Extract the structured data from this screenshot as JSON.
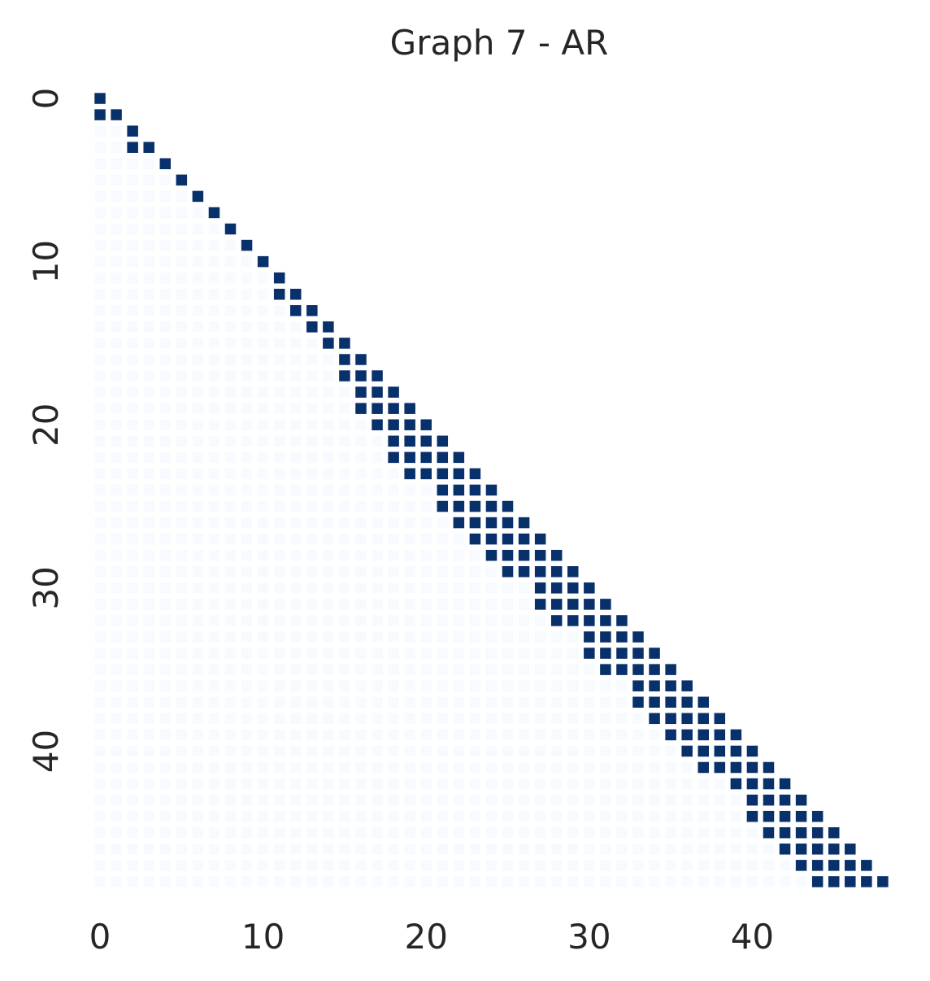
{
  "chart_data": {
    "type": "heatmap",
    "title": "Graph 7 - AR",
    "xlabel": "",
    "ylabel": "",
    "n": 49,
    "x_ticks": [
      0,
      10,
      20,
      30,
      40
    ],
    "y_ticks": [
      0,
      10,
      20,
      30,
      40
    ],
    "mask": "upper-triangle",
    "value_range": [
      0,
      1
    ],
    "colors": {
      "one": "#08306b",
      "zero": "#f7fbff"
    },
    "ones": [
      [
        0,
        0
      ],
      [
        1,
        0
      ],
      [
        1,
        1
      ],
      [
        2,
        2
      ],
      [
        3,
        2
      ],
      [
        3,
        3
      ],
      [
        4,
        4
      ],
      [
        5,
        5
      ],
      [
        6,
        6
      ],
      [
        7,
        7
      ],
      [
        8,
        8
      ],
      [
        9,
        9
      ],
      [
        10,
        10
      ],
      [
        11,
        11
      ],
      [
        12,
        11
      ],
      [
        12,
        12
      ],
      [
        13,
        12
      ],
      [
        13,
        13
      ],
      [
        14,
        13
      ],
      [
        14,
        14
      ],
      [
        15,
        14
      ],
      [
        15,
        15
      ],
      [
        16,
        15
      ],
      [
        16,
        16
      ],
      [
        17,
        15
      ],
      [
        17,
        16
      ],
      [
        17,
        17
      ],
      [
        18,
        16
      ],
      [
        18,
        17
      ],
      [
        18,
        18
      ],
      [
        19,
        16
      ],
      [
        19,
        17
      ],
      [
        19,
        18
      ],
      [
        19,
        19
      ],
      [
        20,
        17
      ],
      [
        20,
        18
      ],
      [
        20,
        19
      ],
      [
        20,
        20
      ],
      [
        21,
        18
      ],
      [
        21,
        19
      ],
      [
        21,
        20
      ],
      [
        21,
        21
      ],
      [
        22,
        18
      ],
      [
        22,
        19
      ],
      [
        22,
        20
      ],
      [
        22,
        21
      ],
      [
        22,
        22
      ],
      [
        23,
        19
      ],
      [
        23,
        20
      ],
      [
        23,
        21
      ],
      [
        23,
        22
      ],
      [
        23,
        23
      ],
      [
        24,
        21
      ],
      [
        24,
        22
      ],
      [
        24,
        23
      ],
      [
        24,
        24
      ],
      [
        25,
        21
      ],
      [
        25,
        22
      ],
      [
        25,
        23
      ],
      [
        25,
        24
      ],
      [
        25,
        25
      ],
      [
        26,
        22
      ],
      [
        26,
        23
      ],
      [
        26,
        24
      ],
      [
        26,
        25
      ],
      [
        26,
        26
      ],
      [
        27,
        23
      ],
      [
        27,
        24
      ],
      [
        27,
        25
      ],
      [
        27,
        26
      ],
      [
        27,
        27
      ],
      [
        28,
        24
      ],
      [
        28,
        25
      ],
      [
        28,
        26
      ],
      [
        28,
        27
      ],
      [
        28,
        28
      ],
      [
        29,
        25
      ],
      [
        29,
        26
      ],
      [
        29,
        27
      ],
      [
        29,
        28
      ],
      [
        29,
        29
      ],
      [
        30,
        27
      ],
      [
        30,
        28
      ],
      [
        30,
        29
      ],
      [
        30,
        30
      ],
      [
        31,
        27
      ],
      [
        31,
        28
      ],
      [
        31,
        29
      ],
      [
        31,
        30
      ],
      [
        31,
        31
      ],
      [
        32,
        28
      ],
      [
        32,
        29
      ],
      [
        32,
        30
      ],
      [
        32,
        31
      ],
      [
        32,
        32
      ],
      [
        33,
        30
      ],
      [
        33,
        31
      ],
      [
        33,
        32
      ],
      [
        33,
        33
      ],
      [
        34,
        30
      ],
      [
        34,
        31
      ],
      [
        34,
        32
      ],
      [
        34,
        33
      ],
      [
        34,
        34
      ],
      [
        35,
        31
      ],
      [
        35,
        32
      ],
      [
        35,
        33
      ],
      [
        35,
        34
      ],
      [
        35,
        35
      ],
      [
        36,
        33
      ],
      [
        36,
        34
      ],
      [
        36,
        35
      ],
      [
        36,
        36
      ],
      [
        37,
        33
      ],
      [
        37,
        34
      ],
      [
        37,
        35
      ],
      [
        37,
        36
      ],
      [
        37,
        37
      ],
      [
        38,
        34
      ],
      [
        38,
        35
      ],
      [
        38,
        36
      ],
      [
        38,
        37
      ],
      [
        38,
        38
      ],
      [
        39,
        35
      ],
      [
        39,
        36
      ],
      [
        39,
        37
      ],
      [
        39,
        38
      ],
      [
        39,
        39
      ],
      [
        40,
        36
      ],
      [
        40,
        37
      ],
      [
        40,
        38
      ],
      [
        40,
        39
      ],
      [
        40,
        40
      ],
      [
        41,
        37
      ],
      [
        41,
        38
      ],
      [
        41,
        39
      ],
      [
        41,
        40
      ],
      [
        41,
        41
      ],
      [
        42,
        39
      ],
      [
        42,
        40
      ],
      [
        42,
        41
      ],
      [
        42,
        42
      ],
      [
        43,
        40
      ],
      [
        43,
        41
      ],
      [
        43,
        42
      ],
      [
        43,
        43
      ],
      [
        44,
        40
      ],
      [
        44,
        41
      ],
      [
        44,
        42
      ],
      [
        44,
        43
      ],
      [
        44,
        44
      ],
      [
        45,
        41
      ],
      [
        45,
        42
      ],
      [
        45,
        43
      ],
      [
        45,
        44
      ],
      [
        45,
        45
      ],
      [
        46,
        42
      ],
      [
        46,
        43
      ],
      [
        46,
        44
      ],
      [
        46,
        45
      ],
      [
        46,
        46
      ],
      [
        47,
        43
      ],
      [
        47,
        44
      ],
      [
        47,
        45
      ],
      [
        47,
        46
      ],
      [
        47,
        47
      ],
      [
        48,
        44
      ],
      [
        48,
        45
      ],
      [
        48,
        46
      ],
      [
        48,
        47
      ],
      [
        48,
        48
      ]
    ]
  }
}
